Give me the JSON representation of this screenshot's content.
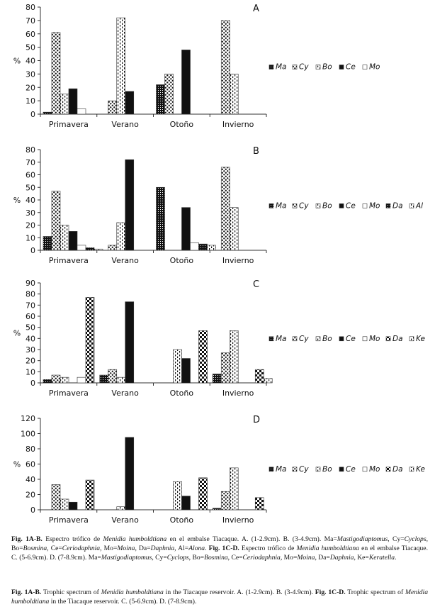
{
  "chart_data": [
    {
      "type": "bar",
      "panel": "A",
      "ylabel": "%",
      "ylim": [
        0,
        80
      ],
      "yticks": [
        0,
        10,
        20,
        30,
        40,
        50,
        60,
        70,
        80
      ],
      "categories": [
        "Primavera",
        "Verano",
        "Otoño",
        "Invierno"
      ],
      "series": [
        {
          "name": "Ma",
          "pattern": "dots",
          "values": [
            1.5,
            0,
            22,
            0
          ]
        },
        {
          "name": "Cy",
          "pattern": "spots",
          "values": [
            61,
            10,
            30,
            70
          ]
        },
        {
          "name": "Bo",
          "pattern": "dash",
          "values": [
            15,
            72,
            0,
            30
          ]
        },
        {
          "name": "Ce",
          "pattern": "solid",
          "values": [
            19,
            17,
            48,
            0
          ]
        },
        {
          "name": "Mo",
          "pattern": "white",
          "values": [
            4,
            0,
            0,
            0
          ]
        }
      ]
    },
    {
      "type": "bar",
      "panel": "B",
      "ylabel": "%",
      "ylim": [
        0,
        80
      ],
      "yticks": [
        0,
        10,
        20,
        30,
        40,
        50,
        60,
        70,
        80
      ],
      "categories": [
        "Primavera",
        "Verano",
        "Otoño",
        "Invierno"
      ],
      "series": [
        {
          "name": "Ma",
          "pattern": "dots",
          "values": [
            11,
            0,
            50,
            0
          ]
        },
        {
          "name": "Cy",
          "pattern": "spots",
          "values": [
            47,
            4,
            0,
            66
          ]
        },
        {
          "name": "Bo",
          "pattern": "dash",
          "values": [
            20,
            22,
            0,
            34
          ]
        },
        {
          "name": "Ce",
          "pattern": "solid",
          "values": [
            15,
            72,
            34,
            0
          ]
        },
        {
          "name": "Mo",
          "pattern": "white",
          "values": [
            4,
            0,
            6,
            0
          ]
        },
        {
          "name": "Da",
          "pattern": "dots",
          "values": [
            2,
            0,
            5,
            0
          ]
        },
        {
          "name": "Al",
          "pattern": "dash",
          "values": [
            1,
            0,
            4,
            0
          ]
        }
      ]
    },
    {
      "type": "bar",
      "panel": "C",
      "ylabel": "%",
      "ylim": [
        0,
        90
      ],
      "yticks": [
        0,
        10,
        20,
        30,
        40,
        50,
        60,
        70,
        80,
        90
      ],
      "categories": [
        "Primavera",
        "Verano",
        "Otoño",
        "Invierno"
      ],
      "series": [
        {
          "name": "Ma",
          "pattern": "dots",
          "values": [
            3,
            7,
            0,
            8
          ]
        },
        {
          "name": "Cy",
          "pattern": "spots",
          "values": [
            7,
            12,
            0,
            27
          ]
        },
        {
          "name": "Bo",
          "pattern": "dash",
          "values": [
            5,
            5,
            30,
            47
          ]
        },
        {
          "name": "Ce",
          "pattern": "solid",
          "values": [
            0,
            73,
            22,
            0
          ]
        },
        {
          "name": "Mo",
          "pattern": "white",
          "values": [
            5,
            0,
            0,
            0
          ]
        },
        {
          "name": "Da",
          "pattern": "check",
          "values": [
            77,
            0,
            47,
            12
          ]
        },
        {
          "name": "Ke",
          "pattern": "dash",
          "values": [
            0,
            0,
            0,
            4
          ]
        }
      ]
    },
    {
      "type": "bar",
      "panel": "D",
      "ylabel": "%",
      "ylim": [
        0,
        120
      ],
      "yticks": [
        0,
        20,
        40,
        60,
        80,
        100,
        120
      ],
      "categories": [
        "Primavera",
        "Verano",
        "Otoño",
        "Invierno"
      ],
      "series": [
        {
          "name": "Ma",
          "pattern": "dots",
          "values": [
            0,
            0,
            0,
            2
          ]
        },
        {
          "name": "Cy",
          "pattern": "spots",
          "values": [
            33,
            0,
            0,
            24
          ]
        },
        {
          "name": "Bo",
          "pattern": "dash",
          "values": [
            14,
            4,
            37,
            55
          ]
        },
        {
          "name": "Ce",
          "pattern": "solid",
          "values": [
            10,
            95,
            18,
            0
          ]
        },
        {
          "name": "Mo",
          "pattern": "white",
          "values": [
            0,
            0,
            0,
            0
          ]
        },
        {
          "name": "Da",
          "pattern": "check",
          "values": [
            39,
            0,
            42,
            16
          ]
        },
        {
          "name": "Ke",
          "pattern": "dash",
          "values": [
            0,
            0,
            0,
            0
          ]
        }
      ]
    }
  ],
  "caption_es": {
    "fig_label": "Fig. 1A-B.",
    "t1": " Espectro trófico de ",
    "species": "Menidia humboldtiana",
    "t2": " en el embalse Tiacaque. A. (1-2.9cm). B. (3-4.9cm). Ma=",
    "ma": "Mastigodiaptomus",
    "t3": ", Cy=",
    "cy": "Cyclops",
    "t4": ", Bo=",
    "bo": "Bosmina",
    "t5": ", Ce=",
    "ce": "Ceriodaphnia",
    "t6": ", Mo=",
    "mo": "Moina",
    "t7": ", Da=",
    "da": "Daphnia",
    "t8": ", Al=",
    "al": "Alona",
    "t9": ". ",
    "fig_label2": "Fig. 1C-D.",
    "t10": " Espectro trófico de ",
    "species2": "Menidia humboldtiana",
    "t11": " en el embalse Tiacaque. C. (5-6.9cm). D. (7-8.9cm). Ma=",
    "ma2": "Mastigodiaptomus",
    "t12": ", Cy=",
    "cy2": "Cyclops",
    "t13": ", Bo=",
    "bo2": "Bosmina",
    "t14": ", Ce=",
    "ce2": "Ceriodaphnia",
    "t15": ", Mo=",
    "mo2": "Moina",
    "t16": ", Da=",
    "da2": "Daphnia",
    "t17": ", Ke=",
    "ke2": "Keratella",
    "t18": "."
  },
  "caption_en": {
    "fig_label": "Fig. 1A-B.",
    "t1": " Trophic spectrum of ",
    "species": "Menidia humboldtiana",
    "t2": " in the Tiacaque reservoir. A. (1-2.9cm). B. (3-4.9cm). ",
    "fig_label2": "Fig. 1C-D.",
    "t3": " Trophic spectrum of ",
    "species2": "Menidia humboldtiana",
    "t4": " in the Tiacaque reservoir. C. (5-6.9cm). D. (7-8.9cm)."
  }
}
